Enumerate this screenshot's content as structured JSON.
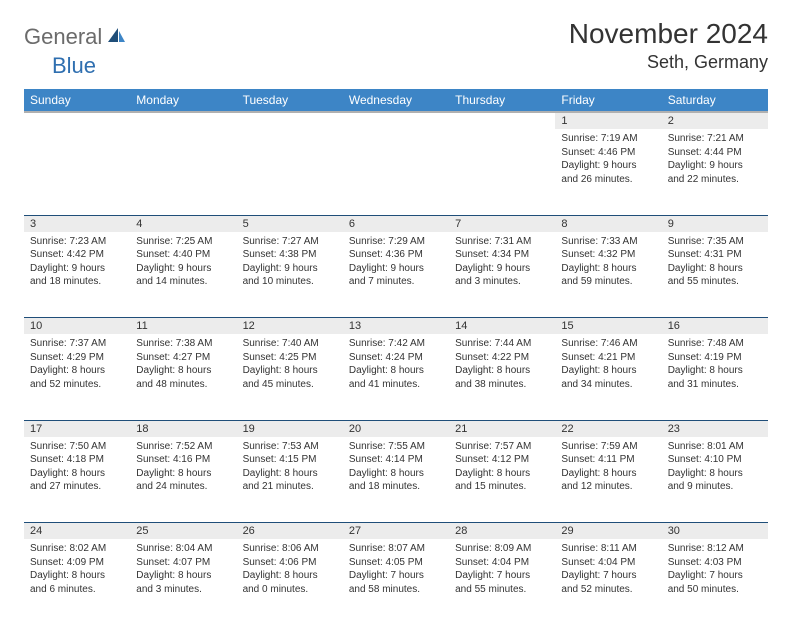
{
  "logo": {
    "part1": "General",
    "part2": "Blue"
  },
  "title": "November 2024",
  "location": "Seth, Germany",
  "colors": {
    "header_bg": "#3d85c6",
    "header_text": "#ffffff",
    "daynum_bg": "#ececec",
    "border": "#1f4e79",
    "logo_gray": "#6b6b6b",
    "logo_blue": "#2f6fb0"
  },
  "weekdays": [
    "Sunday",
    "Monday",
    "Tuesday",
    "Wednesday",
    "Thursday",
    "Friday",
    "Saturday"
  ],
  "weeks": [
    {
      "nums": [
        "",
        "",
        "",
        "",
        "",
        "1",
        "2"
      ],
      "cells": [
        null,
        null,
        null,
        null,
        null,
        {
          "sunrise": "Sunrise: 7:19 AM",
          "sunset": "Sunset: 4:46 PM",
          "daylight1": "Daylight: 9 hours",
          "daylight2": "and 26 minutes."
        },
        {
          "sunrise": "Sunrise: 7:21 AM",
          "sunset": "Sunset: 4:44 PM",
          "daylight1": "Daylight: 9 hours",
          "daylight2": "and 22 minutes."
        }
      ]
    },
    {
      "nums": [
        "3",
        "4",
        "5",
        "6",
        "7",
        "8",
        "9"
      ],
      "cells": [
        {
          "sunrise": "Sunrise: 7:23 AM",
          "sunset": "Sunset: 4:42 PM",
          "daylight1": "Daylight: 9 hours",
          "daylight2": "and 18 minutes."
        },
        {
          "sunrise": "Sunrise: 7:25 AM",
          "sunset": "Sunset: 4:40 PM",
          "daylight1": "Daylight: 9 hours",
          "daylight2": "and 14 minutes."
        },
        {
          "sunrise": "Sunrise: 7:27 AM",
          "sunset": "Sunset: 4:38 PM",
          "daylight1": "Daylight: 9 hours",
          "daylight2": "and 10 minutes."
        },
        {
          "sunrise": "Sunrise: 7:29 AM",
          "sunset": "Sunset: 4:36 PM",
          "daylight1": "Daylight: 9 hours",
          "daylight2": "and 7 minutes."
        },
        {
          "sunrise": "Sunrise: 7:31 AM",
          "sunset": "Sunset: 4:34 PM",
          "daylight1": "Daylight: 9 hours",
          "daylight2": "and 3 minutes."
        },
        {
          "sunrise": "Sunrise: 7:33 AM",
          "sunset": "Sunset: 4:32 PM",
          "daylight1": "Daylight: 8 hours",
          "daylight2": "and 59 minutes."
        },
        {
          "sunrise": "Sunrise: 7:35 AM",
          "sunset": "Sunset: 4:31 PM",
          "daylight1": "Daylight: 8 hours",
          "daylight2": "and 55 minutes."
        }
      ]
    },
    {
      "nums": [
        "10",
        "11",
        "12",
        "13",
        "14",
        "15",
        "16"
      ],
      "cells": [
        {
          "sunrise": "Sunrise: 7:37 AM",
          "sunset": "Sunset: 4:29 PM",
          "daylight1": "Daylight: 8 hours",
          "daylight2": "and 52 minutes."
        },
        {
          "sunrise": "Sunrise: 7:38 AM",
          "sunset": "Sunset: 4:27 PM",
          "daylight1": "Daylight: 8 hours",
          "daylight2": "and 48 minutes."
        },
        {
          "sunrise": "Sunrise: 7:40 AM",
          "sunset": "Sunset: 4:25 PM",
          "daylight1": "Daylight: 8 hours",
          "daylight2": "and 45 minutes."
        },
        {
          "sunrise": "Sunrise: 7:42 AM",
          "sunset": "Sunset: 4:24 PM",
          "daylight1": "Daylight: 8 hours",
          "daylight2": "and 41 minutes."
        },
        {
          "sunrise": "Sunrise: 7:44 AM",
          "sunset": "Sunset: 4:22 PM",
          "daylight1": "Daylight: 8 hours",
          "daylight2": "and 38 minutes."
        },
        {
          "sunrise": "Sunrise: 7:46 AM",
          "sunset": "Sunset: 4:21 PM",
          "daylight1": "Daylight: 8 hours",
          "daylight2": "and 34 minutes."
        },
        {
          "sunrise": "Sunrise: 7:48 AM",
          "sunset": "Sunset: 4:19 PM",
          "daylight1": "Daylight: 8 hours",
          "daylight2": "and 31 minutes."
        }
      ]
    },
    {
      "nums": [
        "17",
        "18",
        "19",
        "20",
        "21",
        "22",
        "23"
      ],
      "cells": [
        {
          "sunrise": "Sunrise: 7:50 AM",
          "sunset": "Sunset: 4:18 PM",
          "daylight1": "Daylight: 8 hours",
          "daylight2": "and 27 minutes."
        },
        {
          "sunrise": "Sunrise: 7:52 AM",
          "sunset": "Sunset: 4:16 PM",
          "daylight1": "Daylight: 8 hours",
          "daylight2": "and 24 minutes."
        },
        {
          "sunrise": "Sunrise: 7:53 AM",
          "sunset": "Sunset: 4:15 PM",
          "daylight1": "Daylight: 8 hours",
          "daylight2": "and 21 minutes."
        },
        {
          "sunrise": "Sunrise: 7:55 AM",
          "sunset": "Sunset: 4:14 PM",
          "daylight1": "Daylight: 8 hours",
          "daylight2": "and 18 minutes."
        },
        {
          "sunrise": "Sunrise: 7:57 AM",
          "sunset": "Sunset: 4:12 PM",
          "daylight1": "Daylight: 8 hours",
          "daylight2": "and 15 minutes."
        },
        {
          "sunrise": "Sunrise: 7:59 AM",
          "sunset": "Sunset: 4:11 PM",
          "daylight1": "Daylight: 8 hours",
          "daylight2": "and 12 minutes."
        },
        {
          "sunrise": "Sunrise: 8:01 AM",
          "sunset": "Sunset: 4:10 PM",
          "daylight1": "Daylight: 8 hours",
          "daylight2": "and 9 minutes."
        }
      ]
    },
    {
      "nums": [
        "24",
        "25",
        "26",
        "27",
        "28",
        "29",
        "30"
      ],
      "cells": [
        {
          "sunrise": "Sunrise: 8:02 AM",
          "sunset": "Sunset: 4:09 PM",
          "daylight1": "Daylight: 8 hours",
          "daylight2": "and 6 minutes."
        },
        {
          "sunrise": "Sunrise: 8:04 AM",
          "sunset": "Sunset: 4:07 PM",
          "daylight1": "Daylight: 8 hours",
          "daylight2": "and 3 minutes."
        },
        {
          "sunrise": "Sunrise: 8:06 AM",
          "sunset": "Sunset: 4:06 PM",
          "daylight1": "Daylight: 8 hours",
          "daylight2": "and 0 minutes."
        },
        {
          "sunrise": "Sunrise: 8:07 AM",
          "sunset": "Sunset: 4:05 PM",
          "daylight1": "Daylight: 7 hours",
          "daylight2": "and 58 minutes."
        },
        {
          "sunrise": "Sunrise: 8:09 AM",
          "sunset": "Sunset: 4:04 PM",
          "daylight1": "Daylight: 7 hours",
          "daylight2": "and 55 minutes."
        },
        {
          "sunrise": "Sunrise: 8:11 AM",
          "sunset": "Sunset: 4:04 PM",
          "daylight1": "Daylight: 7 hours",
          "daylight2": "and 52 minutes."
        },
        {
          "sunrise": "Sunrise: 8:12 AM",
          "sunset": "Sunset: 4:03 PM",
          "daylight1": "Daylight: 7 hours",
          "daylight2": "and 50 minutes."
        }
      ]
    }
  ]
}
